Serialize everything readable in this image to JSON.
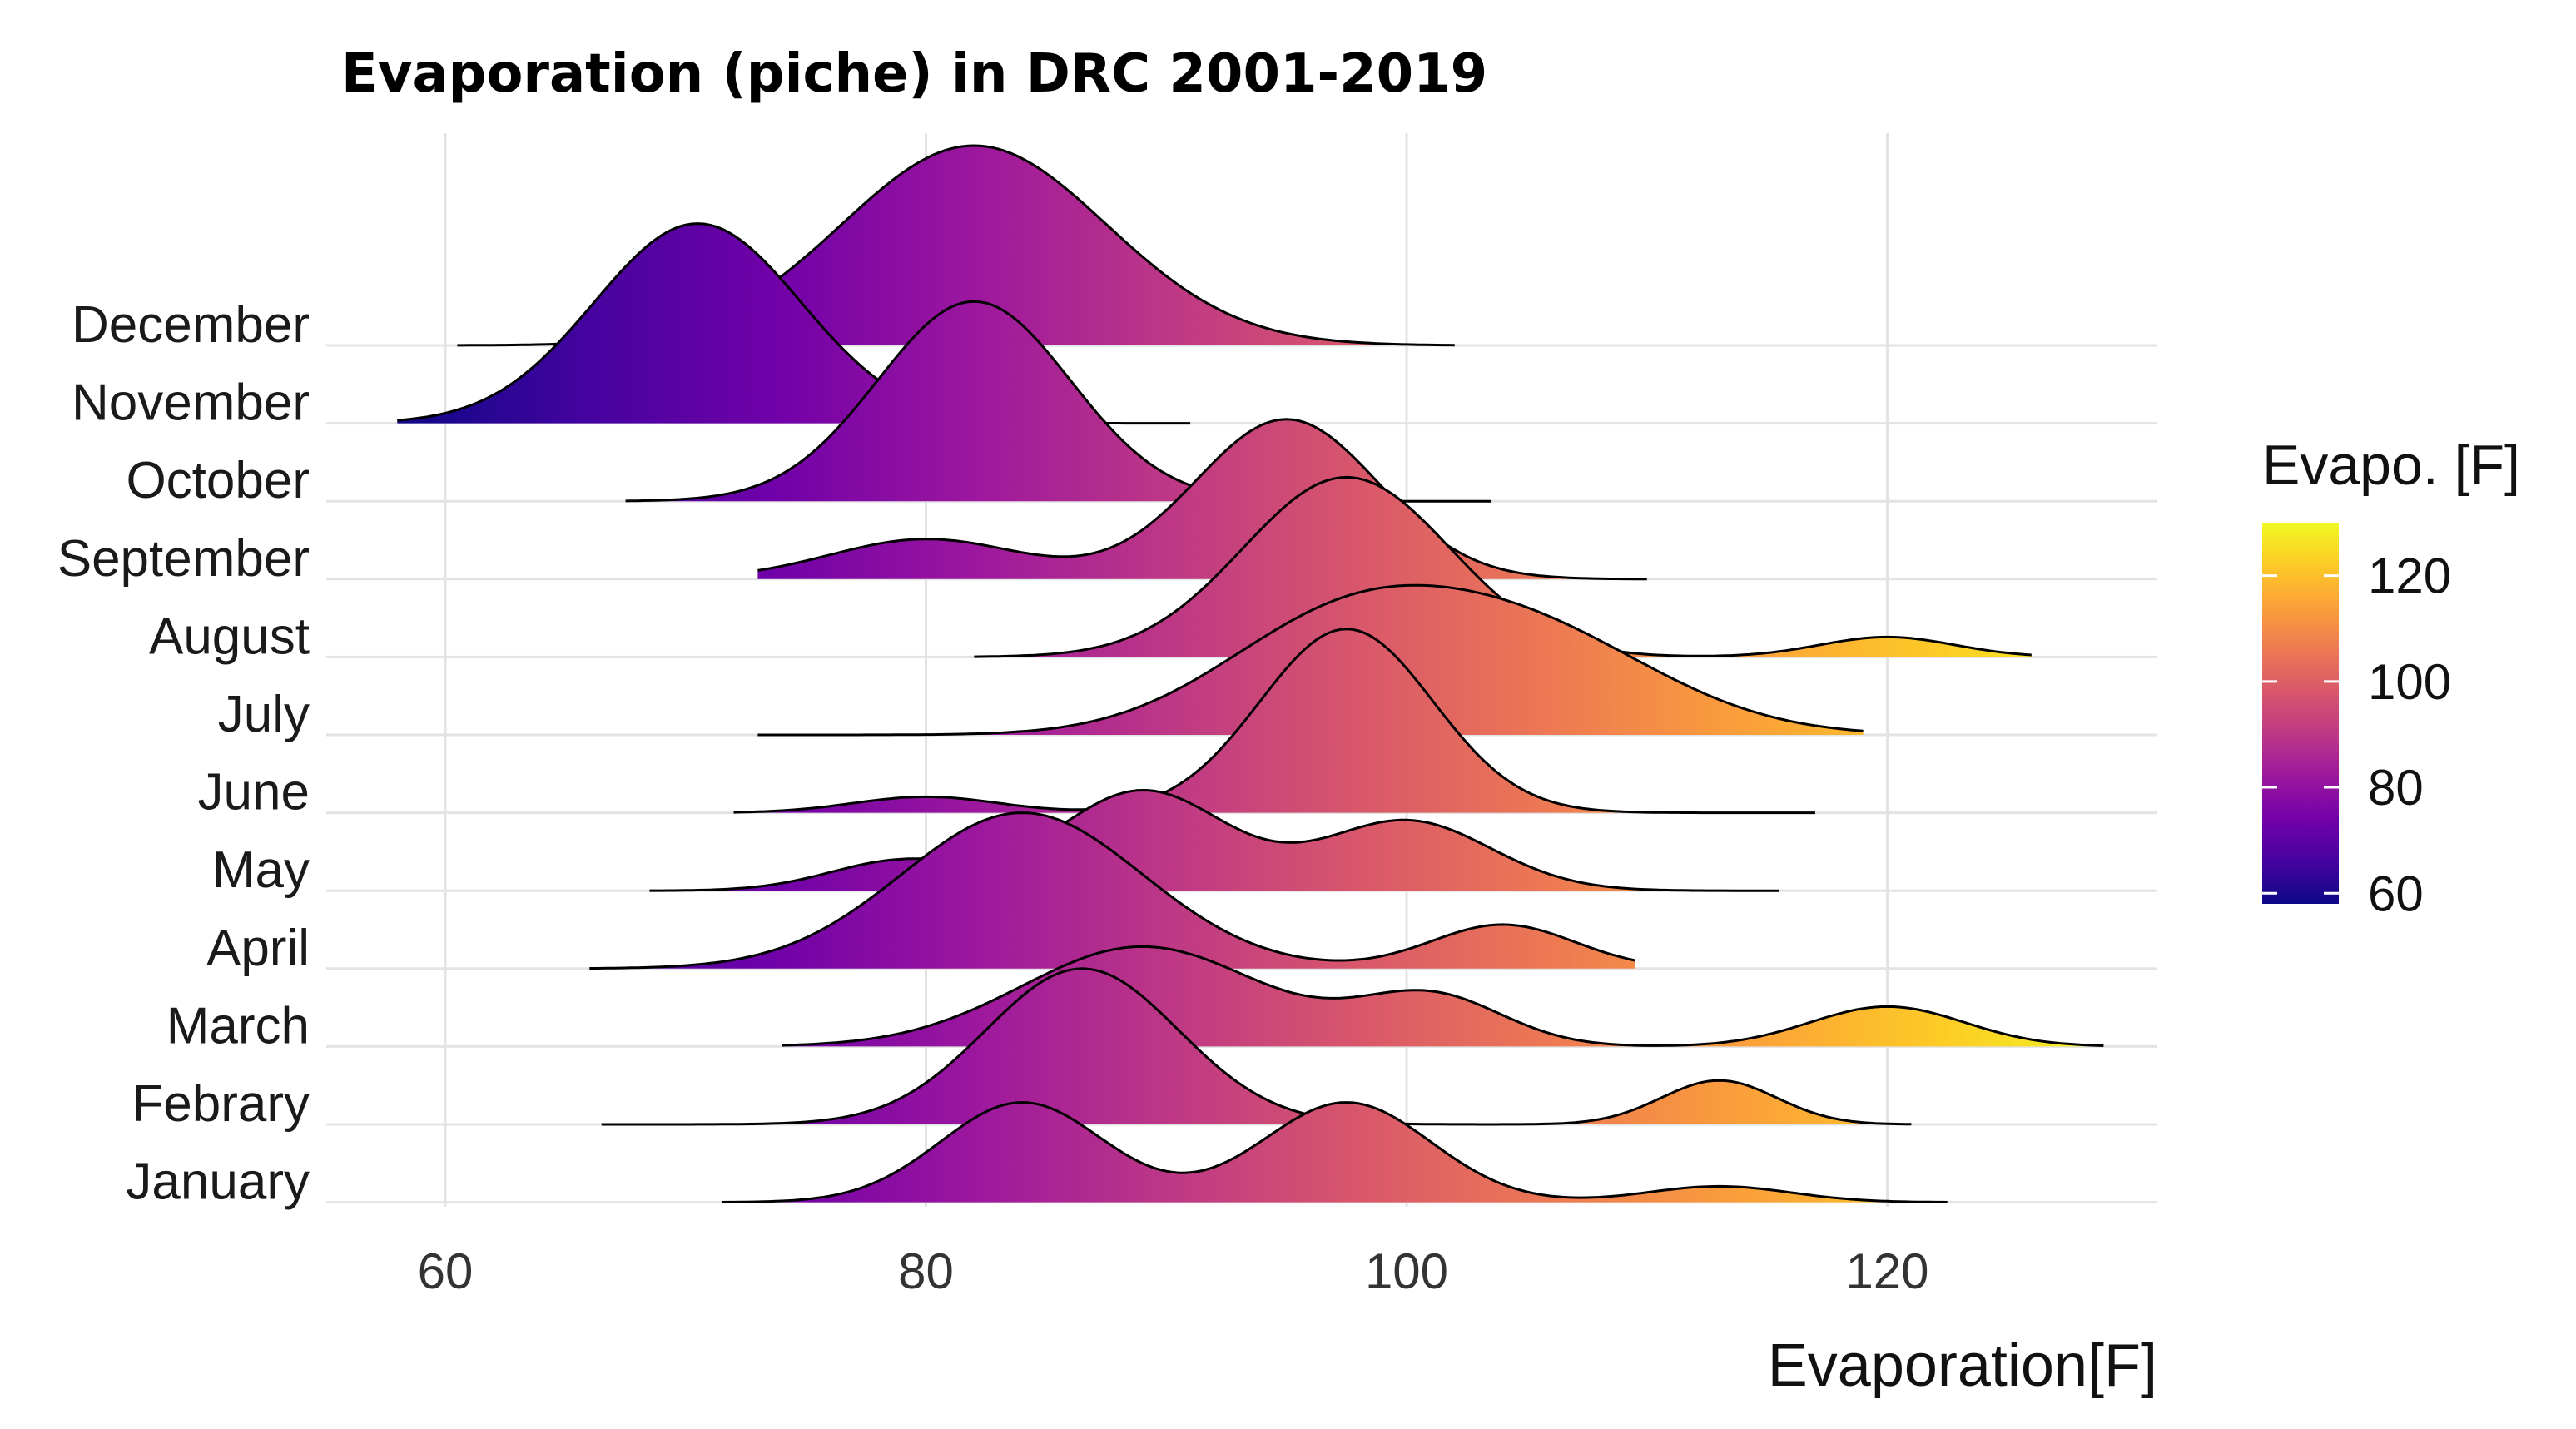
{
  "chart_data": {
    "type": "ridgeline",
    "title": "Evaporation (piche) in DRC 2001-2019",
    "xlabel": "Evaporation[F]",
    "ylabel": "",
    "xlim": [
      55,
      132
    ],
    "x_ticks": [
      60,
      80,
      100,
      120
    ],
    "grid": true,
    "legend": {
      "title": "Evapo. [F]",
      "position": "right",
      "ticks": [
        60,
        80,
        100,
        120
      ],
      "range": [
        58,
        130
      ],
      "colormap": "plasma"
    },
    "categories": [
      "January",
      "Febrary",
      "March",
      "April",
      "May",
      "June",
      "July",
      "August",
      "September",
      "October",
      "November",
      "December"
    ],
    "series": [
      {
        "name": "January",
        "range": [
          71.5,
          122.5
        ],
        "peaks": [
          [
            84,
            3.4,
            0.5
          ],
          [
            97.5,
            3.5,
            0.5
          ],
          [
            113,
            3,
            0.08
          ]
        ]
      },
      {
        "name": "Febrary",
        "range": [
          66.5,
          121
        ],
        "peaks": [
          [
            86.5,
            4,
            0.78
          ],
          [
            113,
            2.4,
            0.22
          ]
        ]
      },
      {
        "name": "March",
        "range": [
          74,
          129
        ],
        "peaks": [
          [
            89,
            5,
            0.5
          ],
          [
            101,
            3,
            0.25
          ],
          [
            120,
            3.2,
            0.2
          ]
        ]
      },
      {
        "name": "April",
        "range": [
          66,
          109.5
        ],
        "peaks": [
          [
            84,
            5,
            0.78
          ],
          [
            104,
            3,
            0.22
          ]
        ]
      },
      {
        "name": "May",
        "range": [
          68.5,
          115.5
        ],
        "peaks": [
          [
            79,
            3,
            0.15
          ],
          [
            89,
            3.5,
            0.5
          ],
          [
            100,
            3.5,
            0.35
          ]
        ]
      },
      {
        "name": "June",
        "range": [
          72,
          117
        ],
        "peaks": [
          [
            80,
            3,
            0.08
          ],
          [
            97.5,
            3.6,
            0.92
          ]
        ]
      },
      {
        "name": "July",
        "range": [
          73,
          119
        ],
        "peaks": [
          [
            97,
            5,
            0.5
          ],
          [
            105,
            5.5,
            0.5
          ]
        ]
      },
      {
        "name": "August",
        "range": [
          82,
          126
        ],
        "peaks": [
          [
            97.5,
            4.3,
            0.9
          ],
          [
            120,
            2.8,
            0.1
          ]
        ]
      },
      {
        "name": "September",
        "range": [
          73,
          110
        ],
        "peaks": [
          [
            80,
            4,
            0.2
          ],
          [
            95,
            3.8,
            0.8
          ]
        ]
      },
      {
        "name": "October",
        "range": [
          67.5,
          103.5
        ],
        "peaks": [
          [
            82,
            4,
            1.0
          ]
        ]
      },
      {
        "name": "November",
        "range": [
          58,
          91
        ],
        "peaks": [
          [
            70.5,
            4.3,
            1.0
          ]
        ]
      },
      {
        "name": "December",
        "range": [
          60.5,
          102
        ],
        "peaks": [
          [
            82,
            5.5,
            1.0
          ]
        ]
      }
    ]
  }
}
